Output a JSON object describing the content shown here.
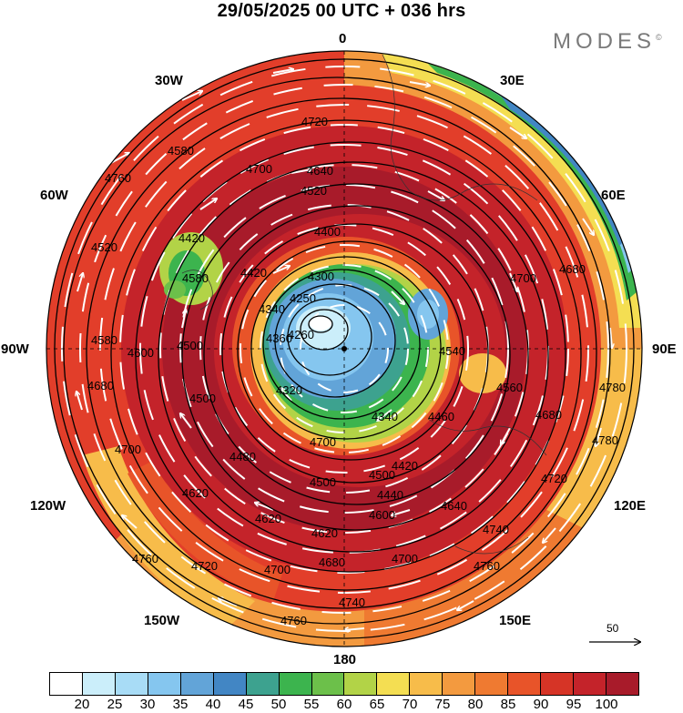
{
  "title": "29/05/2025  00 UTC  + 036 hrs",
  "brand": "MODES",
  "brand_mark": "©",
  "map": {
    "longitude_labels": {
      "lon_0": "0",
      "lon_30e": "30E",
      "lon_60e": "60E",
      "lon_90e": "90E",
      "lon_120e": "120E",
      "lon_150e": "150E",
      "lon_180": "180",
      "lon_150w": "150W",
      "lon_120w": "120W",
      "lon_90w": "90W",
      "lon_60w": "60W",
      "lon_30w": "30W"
    },
    "contour_labels": [
      "4720",
      "4640",
      "4600",
      "4520",
      "4400",
      "4300",
      "4250",
      "4260",
      "4320",
      "4340",
      "4360",
      "4420",
      "4580",
      "4540",
      "4700",
      "4680",
      "4600",
      "4500",
      "4400",
      "4480",
      "4500",
      "4620",
      "4620",
      "4680",
      "4700",
      "4720",
      "4760",
      "4740",
      "4760",
      "4600",
      "4640",
      "4740",
      "4760",
      "4700",
      "4620",
      "4440",
      "4420",
      "4460",
      "4540",
      "4560",
      "4680",
      "4720",
      "4780",
      "4780",
      "4520",
      "4580",
      "4700",
      "4680",
      "4700",
      "4500",
      "4340",
      "4420"
    ],
    "wind_scale_label": "50"
  },
  "colorbar": {
    "colors": [
      "#ffffff",
      "#cbeefa",
      "#a8dcf6",
      "#85c6ef",
      "#62a4d8",
      "#4286c4",
      "#3da28f",
      "#3cb44e",
      "#6cc04a",
      "#b2d347",
      "#f4de52",
      "#f7bc4a",
      "#f39a3f",
      "#ef7a31",
      "#e85429",
      "#d63426",
      "#c4232a",
      "#a81b2a"
    ],
    "tick_labels": [
      "20",
      "25",
      "30",
      "35",
      "40",
      "45",
      "50",
      "55",
      "60",
      "65",
      "70",
      "75",
      "80",
      "85",
      "90",
      "95",
      "100"
    ]
  }
}
